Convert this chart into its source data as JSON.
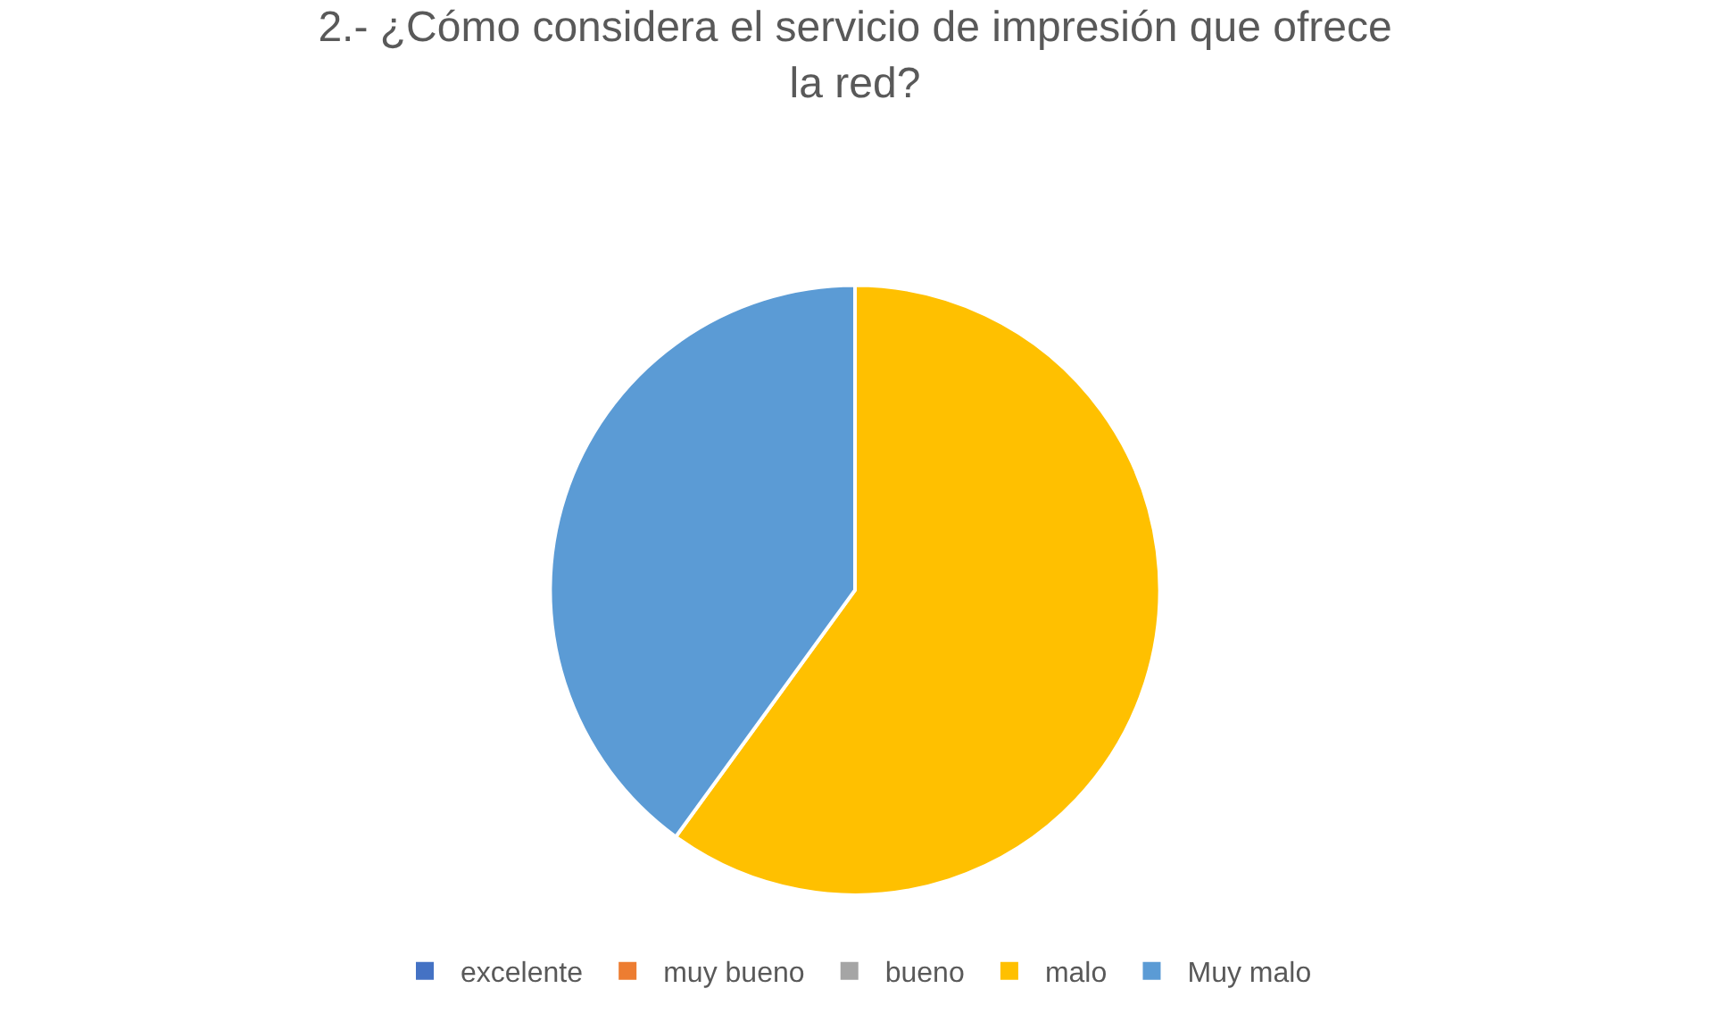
{
  "chart_data": {
    "type": "pie",
    "title": "2.- ¿Cómo considera el servicio de impresión que ofrece la red?",
    "categories": [
      "excelente",
      "muy bueno",
      "bueno",
      "malo",
      "Muy malo"
    ],
    "values": [
      0,
      0,
      0,
      60,
      40
    ],
    "colors": [
      "#4472c4",
      "#ed7d31",
      "#a5a5a5",
      "#ffc000",
      "#5b9bd5"
    ],
    "legend": "bottom"
  }
}
